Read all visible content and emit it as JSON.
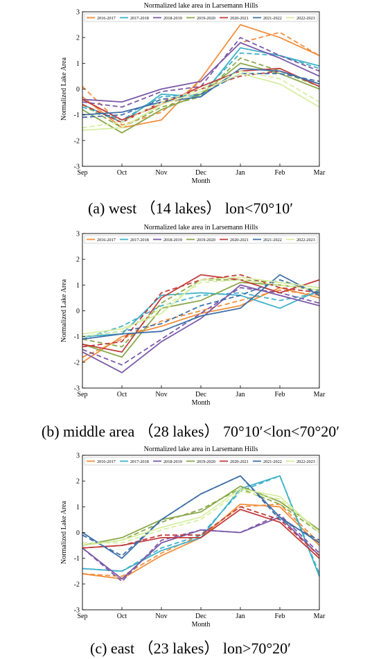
{
  "figure": {
    "captions": [
      "(a) west （14 lakes） lon<70°10′",
      "(b) middle area （28 lakes） 70°10′<lon<70°20′",
      "(c) east （23 lakes） lon>70°20′"
    ]
  },
  "colors": {
    "2016-2017": "#f28e3c",
    "2017-2018": "#3fb1c8",
    "2018-2019": "#7b59a8",
    "2019-2020": "#8aa84a",
    "2020-2021": "#c23b3b",
    "2021-2022": "#3f6fa8",
    "2022-2023": "#d6eea0"
  },
  "chart_data": [
    {
      "type": "line",
      "title": "Normalized lake area in Larsemann Hills",
      "xlabel": "Month",
      "ylabel": "Normalized Lake Area",
      "categories": [
        "Sep",
        "Oct",
        "Nov",
        "Dec",
        "Jan",
        "Feb",
        "Mar"
      ],
      "yticks": [
        "-3",
        "-2",
        "-1",
        "0",
        "1",
        "2",
        "3"
      ],
      "ylim": [
        -3,
        3
      ],
      "legend_position": "top",
      "line_styles": [
        "solid",
        "dashed"
      ],
      "series": [
        {
          "name": "2016-2017",
          "values": [
            -0.3,
            -1.5,
            -1.2,
            0.4,
            2.5,
            2.0,
            1.3
          ],
          "dashed": [
            0.1,
            -1.4,
            -0.9,
            0.3,
            1.8,
            2.2,
            1.3
          ]
        },
        {
          "name": "2017-2018",
          "values": [
            -0.6,
            -1.3,
            -0.2,
            -0.3,
            1.6,
            1.3,
            0.9
          ],
          "dashed": [
            -0.7,
            -1.2,
            -0.3,
            -0.2,
            1.4,
            1.3,
            0.8
          ]
        },
        {
          "name": "2018-2019",
          "values": [
            -0.4,
            -0.5,
            0.0,
            0.3,
            1.8,
            1.2,
            0.5
          ],
          "dashed": [
            -0.5,
            -0.7,
            -0.1,
            0.1,
            2.0,
            1.3,
            0.7
          ]
        },
        {
          "name": "2019-2020",
          "values": [
            -0.8,
            -1.7,
            -0.8,
            -0.2,
            1.0,
            0.6,
            0.0
          ],
          "dashed": [
            -0.6,
            -1.5,
            -0.7,
            -0.3,
            1.2,
            0.7,
            0.1
          ]
        },
        {
          "name": "2020-2021",
          "values": [
            -0.4,
            -1.2,
            -0.6,
            0.1,
            0.7,
            0.8,
            0.1
          ],
          "dashed": [
            -0.6,
            -1.3,
            -0.5,
            0.0,
            0.5,
            0.7,
            0.2
          ]
        },
        {
          "name": "2021-2022",
          "values": [
            -1.0,
            -0.9,
            -0.5,
            -0.3,
            0.8,
            0.7,
            0.2
          ],
          "dashed": [
            -1.1,
            -1.0,
            -0.4,
            -0.2,
            0.6,
            0.6,
            0.3
          ]
        },
        {
          "name": "2022-2023",
          "values": [
            -1.6,
            -1.5,
            -0.6,
            -0.1,
            0.6,
            0.2,
            -0.7
          ],
          "dashed": [
            -1.5,
            -1.3,
            -0.5,
            0.0,
            0.7,
            0.4,
            -0.5
          ]
        }
      ]
    },
    {
      "type": "line",
      "title": "Normalized lake area in Larsemann Hills",
      "xlabel": "Month",
      "ylabel": "Normalized Lake Area",
      "categories": [
        "Sep",
        "Oct",
        "Nov",
        "Dec",
        "Jan",
        "Feb",
        "Mar"
      ],
      "yticks": [
        "-3",
        "-2",
        "-1",
        "0",
        "1",
        "2",
        "3"
      ],
      "ylim": [
        -3,
        3
      ],
      "legend_position": "top",
      "line_styles": [
        "solid",
        "dashed"
      ],
      "series": [
        {
          "name": "2016-2017",
          "values": [
            -2.0,
            -1.0,
            -0.6,
            -0.1,
            0.2,
            0.9,
            0.5
          ],
          "dashed": [
            -1.8,
            -1.1,
            -0.4,
            0.0,
            0.4,
            0.8,
            0.6
          ]
        },
        {
          "name": "2017-2018",
          "values": [
            -1.0,
            -0.9,
            0.6,
            0.7,
            0.6,
            0.1,
            0.8
          ],
          "dashed": [
            -1.1,
            -0.6,
            0.2,
            0.6,
            0.7,
            0.4,
            0.7
          ]
        },
        {
          "name": "2018-2019",
          "values": [
            -1.6,
            -2.4,
            -1.2,
            -0.3,
            1.0,
            0.6,
            0.2
          ],
          "dashed": [
            -1.5,
            -2.1,
            -1.1,
            -0.1,
            0.9,
            0.7,
            0.3
          ]
        },
        {
          "name": "2019-2020",
          "values": [
            -1.3,
            -1.8,
            0.1,
            0.4,
            1.1,
            1.0,
            0.8
          ],
          "dashed": [
            -1.1,
            -1.4,
            0.3,
            1.2,
            1.2,
            1.1,
            0.9
          ]
        },
        {
          "name": "2020-2021",
          "values": [
            -1.3,
            -1.6,
            0.5,
            1.4,
            1.2,
            0.7,
            1.2
          ],
          "dashed": [
            -1.4,
            -1.2,
            0.7,
            1.2,
            1.4,
            0.9,
            0.7
          ]
        },
        {
          "name": "2021-2022",
          "values": [
            -1.1,
            -0.9,
            -0.8,
            -0.2,
            0.1,
            1.4,
            0.6
          ],
          "dashed": [
            -1.0,
            -0.8,
            -0.5,
            0.2,
            0.6,
            1.2,
            0.7
          ]
        },
        {
          "name": "2022-2023",
          "values": [
            -0.9,
            -0.7,
            -0.1,
            1.2,
            1.3,
            1.1,
            0.9
          ],
          "dashed": [
            -1.0,
            -0.8,
            0.1,
            1.1,
            1.2,
            1.0,
            0.8
          ]
        }
      ]
    },
    {
      "type": "line",
      "title": "Normalized lake area in Larsemann Hills",
      "xlabel": "Month",
      "ylabel": "Normalized Lake Area",
      "categories": [
        "Sep",
        "Oct",
        "Nov",
        "Dec",
        "Jan",
        "Feb",
        "Mar"
      ],
      "yticks": [
        "-3",
        "-2",
        "-1",
        "0",
        "1",
        "2",
        "3"
      ],
      "ylim": [
        -3,
        3
      ],
      "legend_position": "top",
      "line_styles": [
        "solid",
        "dashed"
      ],
      "series": [
        {
          "name": "2016-2017",
          "values": [
            -1.6,
            -1.8,
            -0.9,
            -0.2,
            1.1,
            1.0,
            -0.5
          ],
          "dashed": [
            -1.6,
            -1.7,
            -0.8,
            -0.1,
            1.0,
            1.1,
            -0.4
          ]
        },
        {
          "name": "2017-2018",
          "values": [
            -1.4,
            -1.5,
            -0.7,
            -0.2,
            1.7,
            2.2,
            -1.7
          ],
          "dashed": [
            -1.4,
            -1.5,
            -0.6,
            -0.1,
            1.6,
            2.2,
            -1.6
          ]
        },
        {
          "name": "2018-2019",
          "values": [
            -0.6,
            -1.8,
            -0.4,
            0.1,
            0.0,
            0.6,
            -0.9
          ],
          "dashed": [
            -0.6,
            -1.9,
            -0.3,
            0.1,
            0.0,
            0.7,
            -0.8
          ]
        },
        {
          "name": "2019-2020",
          "values": [
            -0.5,
            -0.2,
            0.5,
            0.8,
            1.8,
            1.2,
            0.1
          ],
          "dashed": [
            -0.5,
            -0.3,
            0.4,
            0.9,
            1.7,
            1.1,
            0.0
          ]
        },
        {
          "name": "2020-2021",
          "values": [
            -0.6,
            -0.5,
            -0.2,
            -0.2,
            0.9,
            0.4,
            -1.0
          ],
          "dashed": [
            -0.6,
            -0.5,
            -0.1,
            -0.1,
            1.0,
            0.5,
            -0.9
          ]
        },
        {
          "name": "2021-2022",
          "values": [
            0.0,
            -1.0,
            0.5,
            1.5,
            2.2,
            0.6,
            -0.4
          ],
          "dashed": [
            -0.1,
            -0.9,
            0.5,
            1.5,
            2.2,
            0.5,
            -0.3
          ]
        },
        {
          "name": "2022-2023",
          "values": [
            -0.5,
            -0.3,
            0.2,
            0.6,
            1.7,
            1.4,
            0.0
          ],
          "dashed": [
            -0.4,
            -0.4,
            0.1,
            0.5,
            1.6,
            1.3,
            0.0
          ]
        }
      ]
    }
  ]
}
